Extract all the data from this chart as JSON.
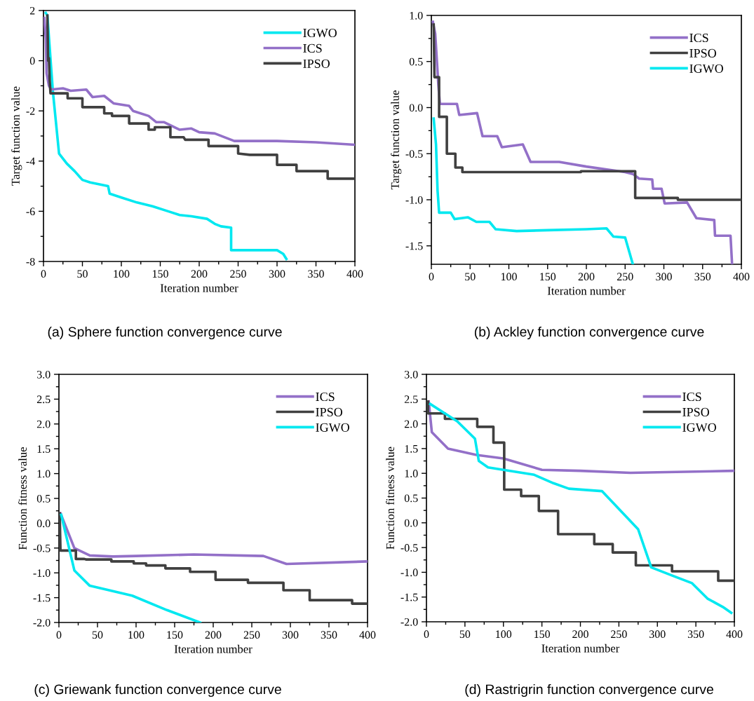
{
  "chart_data": [
    {
      "type": "line",
      "xlabel": "Iteration number",
      "ylabel": "Target function value",
      "annotations": [
        "(a) Sphere function convergence curve"
      ],
      "xlim": [
        0,
        400
      ],
      "xticks": [
        0,
        50,
        100,
        150,
        200,
        250,
        300,
        350,
        400
      ],
      "ylim": [
        -8,
        2
      ],
      "yticks": [
        -8,
        -6,
        -4,
        -2,
        0,
        2
      ],
      "grid": false,
      "legend": "top right",
      "line_style": "solid",
      "marker": "none",
      "series": [
        {
          "name": "IGWO",
          "color": "#00e8f0",
          "x": [
            3,
            5,
            8,
            12,
            20,
            30,
            40,
            50,
            60,
            83,
            85,
            100,
            120,
            140,
            160,
            175,
            190,
            210,
            220,
            228,
            241,
            241,
            260,
            300,
            308,
            312
          ],
          "values": [
            1.9,
            1.8,
            0.5,
            -1.2,
            -3.7,
            -4.1,
            -4.4,
            -4.75,
            -4.85,
            -5.0,
            -5.3,
            -5.45,
            -5.65,
            -5.8,
            -6.0,
            -6.15,
            -6.2,
            -6.3,
            -6.5,
            -6.6,
            -6.65,
            -7.55,
            -7.55,
            -7.55,
            -7.7,
            -7.9
          ]
        },
        {
          "name": "ICS",
          "color": "#9370c8",
          "x": [
            1,
            3,
            4,
            7,
            10,
            25,
            35,
            55,
            63,
            78,
            90,
            110,
            115,
            135,
            145,
            155,
            175,
            190,
            200,
            220,
            245,
            300,
            350,
            400
          ],
          "values": [
            1.7,
            0.9,
            -0.5,
            -1.0,
            -1.15,
            -1.1,
            -1.2,
            -1.15,
            -1.45,
            -1.4,
            -1.7,
            -1.8,
            -2.0,
            -2.2,
            -2.45,
            -2.45,
            -2.75,
            -2.7,
            -2.85,
            -2.9,
            -3.2,
            -3.2,
            -3.25,
            -3.35
          ]
        },
        {
          "name": "IPSO",
          "color": "#404040",
          "x": [
            5,
            6,
            7,
            8,
            9,
            31,
            31,
            50,
            50,
            78,
            78,
            88,
            88,
            110,
            110,
            135,
            135,
            143,
            143,
            163,
            163,
            180,
            182,
            212,
            212,
            250,
            250,
            265,
            300,
            300,
            325,
            325,
            365,
            365,
            400
          ],
          "values": [
            1.8,
            0.0,
            0.1,
            -0.8,
            -1.3,
            -1.3,
            -1.5,
            -1.5,
            -1.85,
            -1.85,
            -2.1,
            -2.1,
            -2.2,
            -2.2,
            -2.5,
            -2.5,
            -2.75,
            -2.75,
            -2.65,
            -2.65,
            -3.05,
            -3.05,
            -3.15,
            -3.15,
            -3.4,
            -3.4,
            -3.7,
            -3.75,
            -3.75,
            -4.15,
            -4.15,
            -4.4,
            -4.4,
            -4.7,
            -4.7
          ]
        }
      ]
    },
    {
      "type": "line",
      "xlabel": "Iteration number",
      "ylabel": "Target function value",
      "annotations": [
        "(b) Ackley function convergence curve"
      ],
      "xlim": [
        0,
        400
      ],
      "xticks": [
        0,
        50,
        100,
        150,
        200,
        250,
        300,
        350,
        400
      ],
      "ylim": [
        -1.7,
        1.0
      ],
      "yticks": [
        {
          "value": -1.5,
          "label": "-1.5"
        },
        {
          "value": -1.0,
          "label": "-1.0"
        },
        {
          "value": -0.5,
          "label": "-0.5"
        },
        {
          "value": 0.0,
          "label": "0.0"
        },
        {
          "value": 0.5,
          "label": "0.5"
        },
        {
          "value": 1.0,
          "label": "1.0"
        }
      ],
      "grid": false,
      "legend": "top right",
      "line_style": "solid",
      "marker": "none",
      "series": [
        {
          "name": "ICS",
          "color": "#9370c8",
          "x": [
            2,
            5,
            9,
            11,
            33,
            36,
            59,
            66,
            85,
            91,
            118,
            128,
            165,
            200,
            250,
            260,
            268,
            285,
            286,
            297,
            301,
            330,
            342,
            365,
            366,
            386,
            388
          ],
          "values": [
            0.93,
            0.8,
            0.25,
            0.04,
            0.04,
            -0.08,
            -0.06,
            -0.31,
            -0.31,
            -0.43,
            -0.4,
            -0.59,
            -0.59,
            -0.64,
            -0.7,
            -0.72,
            -0.77,
            -0.78,
            -0.88,
            -0.88,
            -1.04,
            -1.03,
            -1.2,
            -1.22,
            -1.39,
            -1.39,
            -1.7
          ]
        },
        {
          "name": "IPSO",
          "color": "#404040",
          "x": [
            3,
            4,
            10,
            10,
            20,
            20,
            31,
            31,
            40,
            40,
            193,
            193,
            263,
            263,
            318,
            318,
            400
          ],
          "values": [
            0.9,
            0.33,
            0.33,
            -0.1,
            -0.1,
            -0.5,
            -0.5,
            -0.65,
            -0.65,
            -0.7,
            -0.7,
            -0.69,
            -0.69,
            -0.98,
            -0.98,
            -1.0,
            -1.0
          ]
        },
        {
          "name": "IGWO",
          "color": "#00e8f0",
          "x": [
            3,
            6,
            8,
            10,
            25,
            30,
            47,
            58,
            75,
            83,
            110,
            150,
            200,
            226,
            235,
            250,
            260
          ],
          "values": [
            -0.12,
            -0.4,
            -0.9,
            -1.14,
            -1.14,
            -1.21,
            -1.19,
            -1.24,
            -1.24,
            -1.32,
            -1.34,
            -1.33,
            -1.32,
            -1.31,
            -1.4,
            -1.41,
            -1.7
          ]
        }
      ]
    },
    {
      "type": "line",
      "xlabel": "Iteration number",
      "ylabel": "Function fitness value",
      "annotations": [
        "(c) Griewank function convergence curve"
      ],
      "xlim": [
        0,
        400
      ],
      "xticks": [
        0,
        50,
        100,
        150,
        200,
        250,
        300,
        350,
        400
      ],
      "ylim": [
        -2.0,
        3.0
      ],
      "yticks": [
        {
          "value": -2.0,
          "label": "-2.0"
        },
        {
          "value": -1.5,
          "label": "-1.5"
        },
        {
          "value": -1.0,
          "label": "-1.0"
        },
        {
          "value": -0.5,
          "label": "-0.5"
        },
        {
          "value": 0.0,
          "label": "0.0"
        },
        {
          "value": 0.5,
          "label": "0.5"
        },
        {
          "value": 1.0,
          "label": "1.0"
        },
        {
          "value": 1.5,
          "label": "1.5"
        },
        {
          "value": 2.0,
          "label": "2.0"
        },
        {
          "value": 2.5,
          "label": "2.5"
        },
        {
          "value": 3.0,
          "label": "3.0"
        }
      ],
      "grid": false,
      "legend": "top right",
      "line_style": "solid",
      "marker": "none",
      "series": [
        {
          "name": "ICS",
          "color": "#9370c8",
          "x": [
            2,
            20,
            40,
            70,
            100,
            175,
            265,
            295,
            400
          ],
          "values": [
            0.2,
            -0.5,
            -0.65,
            -0.67,
            -0.66,
            -0.63,
            -0.66,
            -0.82,
            -0.77
          ]
        },
        {
          "name": "IPSO",
          "color": "#404040",
          "x": [
            1,
            2,
            22,
            22,
            33,
            35,
            68,
            68,
            97,
            97,
            113,
            113,
            138,
            138,
            170,
            170,
            203,
            203,
            245,
            245,
            291,
            291,
            325,
            325,
            380,
            380,
            400
          ],
          "values": [
            0.2,
            -0.55,
            -0.55,
            -0.72,
            -0.72,
            -0.73,
            -0.73,
            -0.77,
            -0.77,
            -0.81,
            -0.81,
            -0.85,
            -0.85,
            -0.91,
            -0.91,
            -0.98,
            -0.98,
            -1.14,
            -1.14,
            -1.2,
            -1.2,
            -1.35,
            -1.35,
            -1.55,
            -1.55,
            -1.62,
            -1.62
          ]
        },
        {
          "name": "IGWO",
          "color": "#00e8f0",
          "x": [
            3,
            20,
            40,
            95,
            140,
            183
          ],
          "values": [
            0.17,
            -0.95,
            -1.26,
            -1.46,
            -1.75,
            -2.0
          ]
        }
      ]
    },
    {
      "type": "line",
      "xlabel": "Iteration number",
      "ylabel": "Function fitness value",
      "annotations": [
        "(d) Rastrigrin function convergence curve"
      ],
      "xlim": [
        0,
        400
      ],
      "xticks": [
        0,
        50,
        100,
        150,
        200,
        250,
        300,
        350,
        400
      ],
      "ylim": [
        -2.0,
        3.0
      ],
      "yticks": [
        {
          "value": -2.0,
          "label": "-2.0"
        },
        {
          "value": -1.5,
          "label": "-1.5"
        },
        {
          "value": -1.0,
          "label": "-1.0"
        },
        {
          "value": -0.5,
          "label": "-0.5"
        },
        {
          "value": 0.0,
          "label": "0.0"
        },
        {
          "value": 0.5,
          "label": "0.5"
        },
        {
          "value": 1.0,
          "label": "1.0"
        },
        {
          "value": 1.5,
          "label": "1.5"
        },
        {
          "value": 2.0,
          "label": "2.0"
        },
        {
          "value": 2.5,
          "label": "2.5"
        },
        {
          "value": 3.0,
          "label": "3.0"
        }
      ],
      "grid": false,
      "legend": "top right",
      "line_style": "solid",
      "marker": "none",
      "series": [
        {
          "name": "ICS",
          "color": "#9370c8",
          "x": [
            3,
            7,
            28,
            65,
            100,
            150,
            200,
            265,
            300,
            400
          ],
          "values": [
            2.45,
            1.83,
            1.5,
            1.37,
            1.3,
            1.07,
            1.05,
            1.01,
            1.02,
            1.05
          ]
        },
        {
          "name": "IPSO",
          "color": "#404040",
          "x": [
            2,
            2,
            24,
            24,
            66,
            66,
            87,
            87,
            101,
            101,
            123,
            123,
            146,
            146,
            171,
            171,
            218,
            218,
            242,
            242,
            272,
            272,
            319,
            319,
            379,
            379,
            398
          ],
          "values": [
            2.45,
            2.21,
            2.21,
            2.1,
            2.1,
            1.94,
            1.94,
            1.62,
            1.62,
            0.67,
            0.67,
            0.54,
            0.54,
            0.24,
            0.24,
            -0.23,
            -0.23,
            -0.43,
            -0.43,
            -0.6,
            -0.6,
            -0.86,
            -0.86,
            -0.98,
            -0.98,
            -1.17,
            -1.17
          ]
        },
        {
          "name": "IGWO",
          "color": "#00e8f0",
          "x": [
            5,
            25,
            40,
            63,
            68,
            80,
            140,
            165,
            185,
            228,
            275,
            292,
            320,
            345,
            365,
            385,
            396
          ],
          "values": [
            2.4,
            2.2,
            2.05,
            1.7,
            1.25,
            1.12,
            0.97,
            0.8,
            0.69,
            0.64,
            -0.13,
            -0.9,
            -1.07,
            -1.22,
            -1.53,
            -1.7,
            -1.82
          ]
        }
      ]
    }
  ]
}
